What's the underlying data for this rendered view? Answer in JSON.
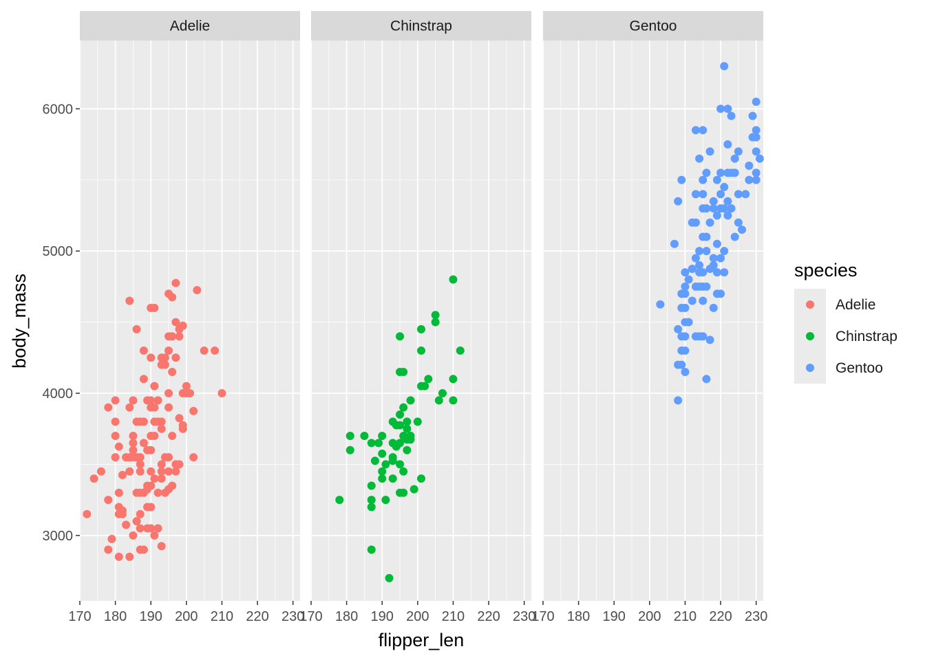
{
  "chart_data": {
    "type": "scatter",
    "facets": [
      "Adelie",
      "Chinstrap",
      "Gentoo"
    ],
    "xlabel": "flipper_len",
    "ylabel": "body_mass",
    "xlim": [
      170,
      232
    ],
    "ylim": [
      2540,
      6480
    ],
    "x_ticks": [
      170,
      180,
      190,
      200,
      210,
      220,
      230
    ],
    "x_tick_labels": [
      "170",
      "180",
      "190",
      "200",
      "210",
      "220",
      "230"
    ],
    "y_ticks": [
      3000,
      4000,
      5000,
      6000
    ],
    "y_tick_labels": [
      "3000",
      "4000",
      "5000",
      "6000"
    ],
    "grid": true,
    "legend": {
      "title": "species",
      "position": "right",
      "entries": [
        {
          "label": "Adelie",
          "color": "#F8766D"
        },
        {
          "label": "Chinstrap",
          "color": "#00BA38"
        },
        {
          "label": "Gentoo",
          "color": "#619CFF"
        }
      ]
    },
    "series": [
      {
        "name": "Adelie",
        "color": "#F8766D",
        "points": [
          [
            172,
            3150
          ],
          [
            174,
            3400
          ],
          [
            176,
            3450
          ],
          [
            178,
            3900
          ],
          [
            178,
            3250
          ],
          [
            178,
            2900
          ],
          [
            179,
            2975
          ],
          [
            180,
            3950
          ],
          [
            180,
            3800
          ],
          [
            180,
            3700
          ],
          [
            180,
            3550
          ],
          [
            181,
            3300
          ],
          [
            181,
            3625
          ],
          [
            181,
            3200
          ],
          [
            181,
            3150
          ],
          [
            181,
            2850
          ],
          [
            182,
            3175
          ],
          [
            182,
            3425
          ],
          [
            182,
            3150
          ],
          [
            183,
            3550
          ],
          [
            183,
            3075
          ],
          [
            184,
            3900
          ],
          [
            184,
            4650
          ],
          [
            184,
            3550
          ],
          [
            184,
            3450
          ],
          [
            184,
            2850
          ],
          [
            185,
            3950
          ],
          [
            185,
            3700
          ],
          [
            185,
            3650
          ],
          [
            185,
            3600
          ],
          [
            185,
            3550
          ],
          [
            185,
            3000
          ],
          [
            186,
            4450
          ],
          [
            186,
            3800
          ],
          [
            186,
            3550
          ],
          [
            186,
            3100
          ],
          [
            186,
            3300
          ],
          [
            187,
            3800
          ],
          [
            187,
            3500
          ],
          [
            187,
            3550
          ],
          [
            187,
            3450
          ],
          [
            187,
            3300
          ],
          [
            187,
            3150
          ],
          [
            187,
            3050
          ],
          [
            187,
            2900
          ],
          [
            188,
            4300
          ],
          [
            188,
            4100
          ],
          [
            188,
            3800
          ],
          [
            188,
            3650
          ],
          [
            188,
            3300
          ],
          [
            188,
            2900
          ],
          [
            189,
            3950
          ],
          [
            189,
            3600
          ],
          [
            189,
            3350
          ],
          [
            189,
            3325
          ],
          [
            189,
            3200
          ],
          [
            189,
            3050
          ],
          [
            190,
            4600
          ],
          [
            190,
            4250
          ],
          [
            190,
            3950
          ],
          [
            190,
            3900
          ],
          [
            190,
            3700
          ],
          [
            190,
            3600
          ],
          [
            190,
            3450
          ],
          [
            190,
            3350
          ],
          [
            190,
            3200
          ],
          [
            190,
            3050
          ],
          [
            191,
            4600
          ],
          [
            191,
            4050
          ],
          [
            191,
            3900
          ],
          [
            191,
            3800
          ],
          [
            191,
            3700
          ],
          [
            191,
            3400
          ],
          [
            191,
            3000
          ],
          [
            192,
            3950
          ],
          [
            192,
            3800
          ],
          [
            192,
            3300
          ],
          [
            192,
            3050
          ],
          [
            193,
            4250
          ],
          [
            193,
            4200
          ],
          [
            193,
            3800
          ],
          [
            193,
            3750
          ],
          [
            193,
            3500
          ],
          [
            193,
            3450
          ],
          [
            193,
            3400
          ],
          [
            193,
            2925
          ],
          [
            194,
            4250
          ],
          [
            194,
            4200
          ],
          [
            194,
            3550
          ],
          [
            194,
            3300
          ],
          [
            195,
            4700
          ],
          [
            195,
            4400
          ],
          [
            195,
            4300
          ],
          [
            195,
            4000
          ],
          [
            195,
            3900
          ],
          [
            195,
            3550
          ],
          [
            195,
            3450
          ],
          [
            195,
            3325
          ],
          [
            196,
            4675
          ],
          [
            196,
            4400
          ],
          [
            196,
            4150
          ],
          [
            196,
            3700
          ],
          [
            196,
            3350
          ],
          [
            197,
            4775
          ],
          [
            197,
            4500
          ],
          [
            197,
            4250
          ],
          [
            197,
            3500
          ],
          [
            197,
            3450
          ],
          [
            198,
            4450
          ],
          [
            198,
            4400
          ],
          [
            198,
            3825
          ],
          [
            198,
            3500
          ],
          [
            199,
            4475
          ],
          [
            199,
            4000
          ],
          [
            199,
            3775
          ],
          [
            199,
            3750
          ],
          [
            200,
            4050
          ],
          [
            200,
            4000
          ],
          [
            201,
            4000
          ],
          [
            202,
            3875
          ],
          [
            202,
            3550
          ],
          [
            203,
            4725
          ],
          [
            205,
            4300
          ],
          [
            208,
            4300
          ],
          [
            210,
            4000
          ]
        ]
      },
      {
        "name": "Chinstrap",
        "color": "#00BA38",
        "points": [
          [
            178,
            3250
          ],
          [
            181,
            3700
          ],
          [
            181,
            3600
          ],
          [
            185,
            3700
          ],
          [
            187,
            3650
          ],
          [
            187,
            3350
          ],
          [
            187,
            3250
          ],
          [
            187,
            3200
          ],
          [
            187,
            2900
          ],
          [
            188,
            3525
          ],
          [
            189,
            3650
          ],
          [
            190,
            3700
          ],
          [
            190,
            3575
          ],
          [
            190,
            3450
          ],
          [
            190,
            3400
          ],
          [
            191,
            3250
          ],
          [
            191,
            3500
          ],
          [
            192,
            2700
          ],
          [
            193,
            3800
          ],
          [
            193,
            3650
          ],
          [
            193,
            3525
          ],
          [
            193,
            3400
          ],
          [
            193,
            3550
          ],
          [
            194,
            3775
          ],
          [
            194,
            3625
          ],
          [
            195,
            4400
          ],
          [
            195,
            4150
          ],
          [
            195,
            3850
          ],
          [
            195,
            3775
          ],
          [
            195,
            3650
          ],
          [
            195,
            3500
          ],
          [
            195,
            3300
          ],
          [
            196,
            4150
          ],
          [
            196,
            3900
          ],
          [
            196,
            3700
          ],
          [
            196,
            3450
          ],
          [
            196,
            3300
          ],
          [
            197,
            3800
          ],
          [
            197,
            3750
          ],
          [
            197,
            3675
          ],
          [
            197,
            3600
          ],
          [
            198,
            3950
          ],
          [
            198,
            3700
          ],
          [
            198,
            3675
          ],
          [
            199,
            3325
          ],
          [
            200,
            3800
          ],
          [
            201,
            4450
          ],
          [
            201,
            4300
          ],
          [
            201,
            4050
          ],
          [
            201,
            3400
          ],
          [
            202,
            4050
          ],
          [
            203,
            4100
          ],
          [
            205,
            4550
          ],
          [
            205,
            4500
          ],
          [
            206,
            3950
          ],
          [
            207,
            4000
          ],
          [
            210,
            4800
          ],
          [
            210,
            4100
          ],
          [
            210,
            3950
          ],
          [
            212,
            4300
          ]
        ]
      },
      {
        "name": "Gentoo",
        "color": "#619CFF",
        "points": [
          [
            203,
            4625
          ],
          [
            207,
            5050
          ],
          [
            208,
            5350
          ],
          [
            208,
            4450
          ],
          [
            208,
            4200
          ],
          [
            208,
            3950
          ],
          [
            209,
            5500
          ],
          [
            209,
            4700
          ],
          [
            209,
            4600
          ],
          [
            209,
            4400
          ],
          [
            209,
            4300
          ],
          [
            209,
            4200
          ],
          [
            210,
            4850
          ],
          [
            210,
            4750
          ],
          [
            210,
            4700
          ],
          [
            210,
            4600
          ],
          [
            210,
            4500
          ],
          [
            210,
            4400
          ],
          [
            210,
            4300
          ],
          [
            210,
            4150
          ],
          [
            211,
            4800
          ],
          [
            211,
            4500
          ],
          [
            212,
            5200
          ],
          [
            212,
            4875
          ],
          [
            212,
            4650
          ],
          [
            213,
            5850
          ],
          [
            213,
            5400
          ],
          [
            213,
            5200
          ],
          [
            213,
            4950
          ],
          [
            213,
            4750
          ],
          [
            213,
            4400
          ],
          [
            214,
            5650
          ],
          [
            214,
            5000
          ],
          [
            214,
            4900
          ],
          [
            214,
            4850
          ],
          [
            214,
            4750
          ],
          [
            214,
            4400
          ],
          [
            215,
            5850
          ],
          [
            215,
            5500
          ],
          [
            215,
            5400
          ],
          [
            215,
            5300
          ],
          [
            215,
            5100
          ],
          [
            215,
            4850
          ],
          [
            215,
            4750
          ],
          [
            215,
            4650
          ],
          [
            215,
            4400
          ],
          [
            216,
            5550
          ],
          [
            216,
            5300
          ],
          [
            216,
            5100
          ],
          [
            216,
            5000
          ],
          [
            216,
            4750
          ],
          [
            216,
            4100
          ],
          [
            217,
            5700
          ],
          [
            217,
            5200
          ],
          [
            217,
            4875
          ],
          [
            217,
            4375
          ],
          [
            218,
            5350
          ],
          [
            218,
            5300
          ],
          [
            218,
            4950
          ],
          [
            218,
            4900
          ],
          [
            218,
            4600
          ],
          [
            219,
            5500
          ],
          [
            219,
            5250
          ],
          [
            219,
            5050
          ],
          [
            219,
            4850
          ],
          [
            219,
            4700
          ],
          [
            220,
            6000
          ],
          [
            220,
            5550
          ],
          [
            220,
            5400
          ],
          [
            220,
            5300
          ],
          [
            220,
            4950
          ],
          [
            220,
            4700
          ],
          [
            221,
            6300
          ],
          [
            221,
            5450
          ],
          [
            221,
            5300
          ],
          [
            221,
            5000
          ],
          [
            221,
            4850
          ],
          [
            222,
            6000
          ],
          [
            222,
            5750
          ],
          [
            222,
            5550
          ],
          [
            222,
            5350
          ],
          [
            222,
            5250
          ],
          [
            223,
            5950
          ],
          [
            223,
            5550
          ],
          [
            223,
            5300
          ],
          [
            224,
            5650
          ],
          [
            224,
            5550
          ],
          [
            224,
            5100
          ],
          [
            225,
            5700
          ],
          [
            225,
            5400
          ],
          [
            225,
            5200
          ],
          [
            226,
            5150
          ],
          [
            227,
            5400
          ],
          [
            228,
            5600
          ],
          [
            228,
            5500
          ],
          [
            229,
            5950
          ],
          [
            229,
            5800
          ],
          [
            230,
            6050
          ],
          [
            230,
            5850
          ],
          [
            230,
            5800
          ],
          [
            230,
            5700
          ],
          [
            230,
            5550
          ],
          [
            230,
            5500
          ],
          [
            231,
            5650
          ]
        ]
      }
    ]
  }
}
